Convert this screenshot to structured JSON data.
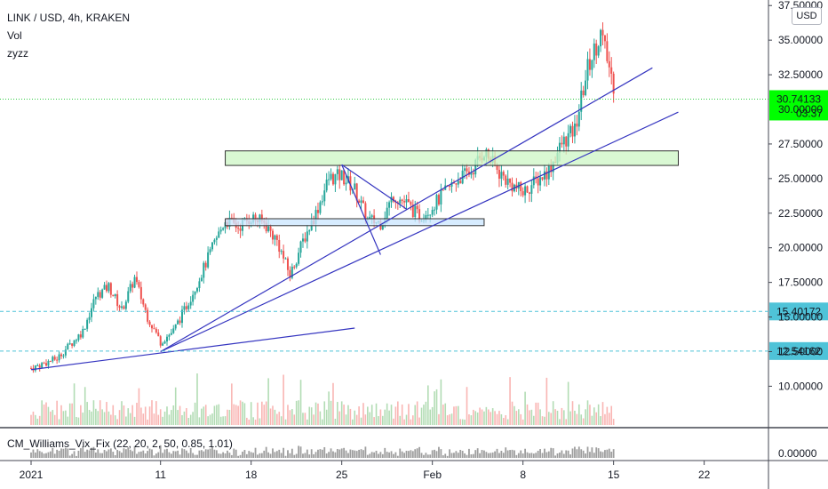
{
  "legend": {
    "symbol": "LINK / USD, 4h, KRAKEN",
    "vol": "Vol",
    "custom": "zyzz"
  },
  "currency_button": "USD",
  "indicator_label": "CM_Williams_Vix_Fix (22, 20, 2, 50, 0.85, 1.01)",
  "colors": {
    "up": "#26a69a",
    "down": "#ef5350",
    "green_box": "#ccf5c4",
    "blue_box": "#c9e6ff",
    "trendline": "#3535c0",
    "price_badge": "#00ff00",
    "hline_badge": "#4fc3d8"
  },
  "chart_data": {
    "type": "candlestick",
    "x_ticks": [
      "2021",
      "11",
      "18",
      "25",
      "Feb",
      "8",
      "15",
      "22"
    ],
    "x_range": [
      "2021-01-01",
      "2021-02-24"
    ],
    "y_ticks": [
      "37.50000",
      "35.00000",
      "32.50000",
      "30.00000",
      "27.50000",
      "25.00000",
      "22.50000",
      "20.00000",
      "17.50000",
      "15.00000",
      "12.50000",
      "10.00000"
    ],
    "y_range": [
      7.2,
      37.9
    ],
    "indicator_y_tick": "0.00000",
    "last_price": {
      "value": 30.74133,
      "label": "30.74133",
      "countdown": "03:37"
    },
    "horizontal_lines": [
      {
        "value": 15.40172,
        "label": "15.40172"
      },
      {
        "value": 12.54162,
        "label": "12.54162"
      }
    ],
    "rectangles": [
      {
        "x_start": "2021-01-16",
        "x_end": "2021-02-20",
        "y_low": 25.95,
        "y_high": 27.0,
        "style": "green"
      },
      {
        "x_start": "2021-01-16",
        "x_end": "2021-02-05",
        "y_low": 21.6,
        "y_high": 22.1,
        "style": "blue"
      }
    ],
    "trendlines": [
      {
        "x1": "2021-01-01",
        "y1": 11.2,
        "x2": "2021-01-26",
        "y2": 14.2
      },
      {
        "x1": "2021-01-11",
        "y1": 12.5,
        "x2": "2021-02-18",
        "y2": 33.0
      },
      {
        "x1": "2021-01-11",
        "y1": 12.5,
        "x2": "2021-02-20",
        "y2": 29.8
      },
      {
        "x1": "2021-01-25",
        "y1": 26.0,
        "x2": "2021-01-30",
        "y2": 22.8
      },
      {
        "x1": "2021-01-25",
        "y1": 26.0,
        "x2": "2021-01-28",
        "y2": 19.5
      }
    ],
    "price_path": [
      [
        "2021-01-01",
        11.3
      ],
      [
        "2021-01-03",
        12.0
      ],
      [
        "2021-01-05",
        14.0
      ],
      [
        "2021-01-06",
        16.5
      ],
      [
        "2021-01-07",
        17.2
      ],
      [
        "2021-01-08",
        15.5
      ],
      [
        "2021-01-09",
        17.8
      ],
      [
        "2021-01-10",
        15.0
      ],
      [
        "2021-01-11",
        13.2
      ],
      [
        "2021-01-12",
        14.0
      ],
      [
        "2021-01-13",
        15.8
      ],
      [
        "2021-01-14",
        17.8
      ],
      [
        "2021-01-15",
        20.0
      ],
      [
        "2021-01-16",
        22.0
      ],
      [
        "2021-01-17",
        21.5
      ],
      [
        "2021-01-18",
        22.2
      ],
      [
        "2021-01-19",
        21.8
      ],
      [
        "2021-01-20",
        20.5
      ],
      [
        "2021-01-21",
        18.0
      ],
      [
        "2021-01-22",
        20.5
      ],
      [
        "2021-01-23",
        22.5
      ],
      [
        "2021-01-24",
        25.0
      ],
      [
        "2021-01-25",
        25.2
      ],
      [
        "2021-01-26",
        24.2
      ],
      [
        "2021-01-27",
        22.0
      ],
      [
        "2021-01-28",
        21.8
      ],
      [
        "2021-01-29",
        23.8
      ],
      [
        "2021-01-30",
        23.2
      ],
      [
        "2021-01-31",
        22.2
      ],
      [
        "2021-02-01",
        23.0
      ],
      [
        "2021-02-02",
        24.0
      ],
      [
        "2021-02-03",
        25.0
      ],
      [
        "2021-02-04",
        25.5
      ],
      [
        "2021-02-05",
        27.0
      ],
      [
        "2021-02-06",
        25.6
      ],
      [
        "2021-02-07",
        24.6
      ],
      [
        "2021-02-08",
        24.0
      ],
      [
        "2021-02-09",
        24.8
      ],
      [
        "2021-02-10",
        25.6
      ],
      [
        "2021-02-11",
        27.5
      ],
      [
        "2021-02-12",
        28.5
      ],
      [
        "2021-02-13",
        33.0
      ],
      [
        "2021-02-14",
        35.5
      ],
      [
        "2021-02-15",
        31.8
      ]
    ]
  }
}
